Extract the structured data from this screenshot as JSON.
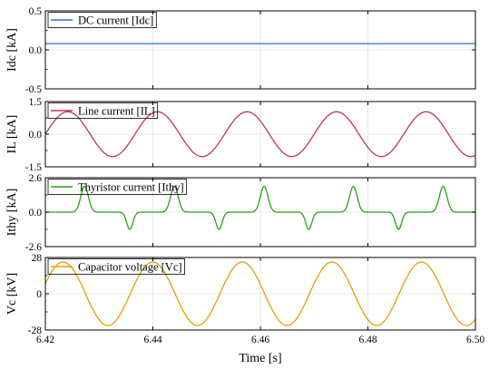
{
  "chart_data": [
    {
      "type": "line",
      "series": [
        {
          "name": "DC current [Idc]",
          "color": "#2e6fd6",
          "constant": 0.08
        }
      ],
      "ylabel": "Idc [kA]",
      "ylim": [
        -0.5,
        0.5
      ],
      "yticks": [
        0.5,
        0.0,
        -0.5
      ],
      "ytick_labels": [
        "0.5",
        "0.0",
        "-0.5"
      ]
    },
    {
      "type": "line",
      "series": [
        {
          "name": "Line current [IL]",
          "color": "#c0345a",
          "amplitude": 1.03,
          "period": 0.016667,
          "phase_zero_at": 6.42
        }
      ],
      "ylabel": "IL [kA]",
      "ylim": [
        -1.5,
        1.5
      ],
      "yticks": [
        1.5,
        0.0,
        -1.5
      ],
      "ytick_labels": [
        "1.5",
        "0.0",
        "-1.5"
      ]
    },
    {
      "type": "line",
      "series": [
        {
          "name": "Thyristor current [Ithy]",
          "color": "#2ca01c",
          "pos_peak": 1.95,
          "neg_peak": -1.3,
          "pos_pulse_centers": [
            6.4273,
            6.444,
            6.4607,
            6.4773,
            6.494
          ],
          "neg_pulse_centers": [
            6.4357,
            6.4523,
            6.469,
            6.4857
          ],
          "pos_pulse_width": 0.0022,
          "neg_pulse_width": 0.0018
        }
      ],
      "ylabel": "Ithy [kA]",
      "ylim": [
        -2.6,
        2.6
      ],
      "yticks": [
        2.6,
        0.0,
        -2.6
      ],
      "ytick_labels": [
        "2.6",
        "0.0",
        "-2.6"
      ]
    },
    {
      "type": "line",
      "series": [
        {
          "name": "Capacitor voltage [Vc]",
          "color": "#e0a000",
          "amplitude": 24.5,
          "period": 0.016667,
          "peak_at": 6.4233
        }
      ],
      "ylabel": "Vc [kV]",
      "ylim": [
        -28,
        28
      ],
      "yticks": [
        28,
        0,
        -28
      ],
      "ytick_labels": [
        "28",
        "0",
        "-28"
      ],
      "xlabel": "Time [s]",
      "xlim": [
        6.42,
        6.5
      ],
      "xticks": [
        6.42,
        6.44,
        6.46,
        6.48,
        6.5
      ],
      "xtick_labels": [
        "6.42",
        "6.44",
        "6.46",
        "6.48",
        "6.50"
      ]
    }
  ]
}
